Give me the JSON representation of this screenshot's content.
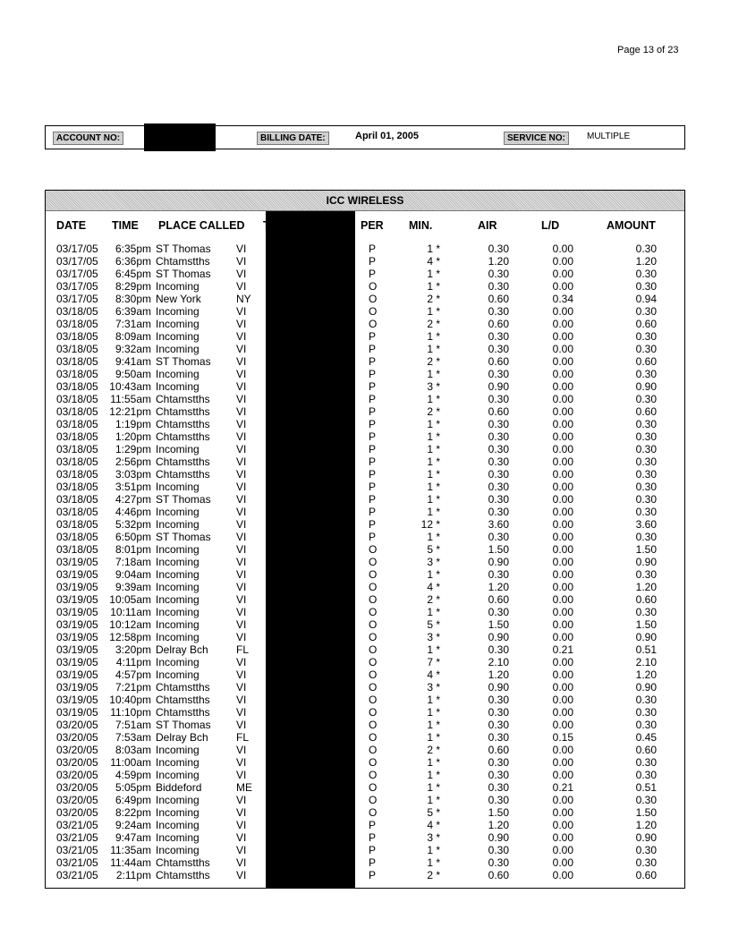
{
  "page_number": "Page 13  of  23",
  "account": {
    "account_label": "ACCOUNT NO:",
    "billing_label": "BILLING DATE:",
    "billing_date": "April  01, 2005",
    "service_label": "SERVICE NO:",
    "service_value": "MULTIPLE"
  },
  "table": {
    "title": "ICC WIRELESS",
    "headers": [
      "DATE",
      "TIME",
      "PLACE CALLED",
      "TELEPHONE #",
      "PER",
      "MIN.",
      "AIR",
      "L/D",
      "AMOUNT"
    ],
    "rows": [
      [
        "03/17/05",
        "6:35pm",
        "ST Thomas",
        "VI",
        "P",
        "1 *",
        "0.30",
        "0.00",
        "0.30"
      ],
      [
        "03/17/05",
        "6:36pm",
        "Chtamstths",
        "VI",
        "P",
        "4 *",
        "1.20",
        "0.00",
        "1.20"
      ],
      [
        "03/17/05",
        "6:45pm",
        "ST Thomas",
        "VI",
        "P",
        "1 *",
        "0.30",
        "0.00",
        "0.30"
      ],
      [
        "03/17/05",
        "8:29pm",
        "Incoming",
        "VI",
        "O",
        "1 *",
        "0.30",
        "0.00",
        "0.30"
      ],
      [
        "03/17/05",
        "8:30pm",
        "New York",
        "NY",
        "O",
        "2 *",
        "0.60",
        "0.34",
        "0.94"
      ],
      [
        "03/18/05",
        "6:39am",
        "Incoming",
        "VI",
        "O",
        "1 *",
        "0.30",
        "0.00",
        "0.30"
      ],
      [
        "03/18/05",
        "7:31am",
        "Incoming",
        "VI",
        "O",
        "2 *",
        "0.60",
        "0.00",
        "0.60"
      ],
      [
        "03/18/05",
        "8:09am",
        "Incoming",
        "VI",
        "P",
        "1 *",
        "0.30",
        "0.00",
        "0.30"
      ],
      [
        "03/18/05",
        "9:32am",
        "Incoming",
        "VI",
        "P",
        "1 *",
        "0.30",
        "0.00",
        "0.30"
      ],
      [
        "03/18/05",
        "9:41am",
        "ST Thomas",
        "VI",
        "P",
        "2 *",
        "0.60",
        "0.00",
        "0.60"
      ],
      [
        "03/18/05",
        "9:50am",
        "Incoming",
        "VI",
        "P",
        "1 *",
        "0.30",
        "0.00",
        "0.30"
      ],
      [
        "03/18/05",
        "10:43am",
        "Incoming",
        "VI",
        "P",
        "3 *",
        "0.90",
        "0.00",
        "0.90"
      ],
      [
        "03/18/05",
        "11:55am",
        "Chtamstths",
        "VI",
        "P",
        "1 *",
        "0.30",
        "0.00",
        "0.30"
      ],
      [
        "03/18/05",
        "12:21pm",
        "Chtamstths",
        "VI",
        "P",
        "2 *",
        "0.60",
        "0.00",
        "0.60"
      ],
      [
        "03/18/05",
        "1:19pm",
        "Chtamstths",
        "VI",
        "P",
        "1 *",
        "0.30",
        "0.00",
        "0.30"
      ],
      [
        "03/18/05",
        "1:20pm",
        "Chtamstths",
        "VI",
        "P",
        "1 *",
        "0.30",
        "0.00",
        "0.30"
      ],
      [
        "03/18/05",
        "1:29pm",
        "Incoming",
        "VI",
        "P",
        "1 *",
        "0.30",
        "0.00",
        "0.30"
      ],
      [
        "03/18/05",
        "2:56pm",
        "Chtamstths",
        "VI",
        "P",
        "1 *",
        "0.30",
        "0.00",
        "0.30"
      ],
      [
        "03/18/05",
        "3:03pm",
        "Chtamstths",
        "VI",
        "P",
        "1 *",
        "0.30",
        "0.00",
        "0.30"
      ],
      [
        "03/18/05",
        "3:51pm",
        "Incoming",
        "VI",
        "P",
        "1 *",
        "0.30",
        "0.00",
        "0.30"
      ],
      [
        "03/18/05",
        "4:27pm",
        "ST Thomas",
        "VI",
        "P",
        "1 *",
        "0.30",
        "0.00",
        "0.30"
      ],
      [
        "03/18/05",
        "4:46pm",
        "Incoming",
        "VI",
        "P",
        "1 *",
        "0.30",
        "0.00",
        "0.30"
      ],
      [
        "03/18/05",
        "5:32pm",
        "Incoming",
        "VI",
        "P",
        "12 *",
        "3.60",
        "0.00",
        "3.60"
      ],
      [
        "03/18/05",
        "6:50pm",
        "ST Thomas",
        "VI",
        "P",
        "1 *",
        "0.30",
        "0.00",
        "0.30"
      ],
      [
        "03/18/05",
        "8:01pm",
        "Incoming",
        "VI",
        "O",
        "5 *",
        "1.50",
        "0.00",
        "1.50"
      ],
      [
        "03/19/05",
        "7:18am",
        "Incoming",
        "VI",
        "O",
        "3 *",
        "0.90",
        "0.00",
        "0.90"
      ],
      [
        "03/19/05",
        "9:04am",
        "Incoming",
        "VI",
        "O",
        "1 *",
        "0.30",
        "0.00",
        "0.30"
      ],
      [
        "03/19/05",
        "9:39am",
        "Incoming",
        "VI",
        "O",
        "4 *",
        "1.20",
        "0.00",
        "1.20"
      ],
      [
        "03/19/05",
        "10:05am",
        "Incoming",
        "VI",
        "O",
        "2 *",
        "0.60",
        "0.00",
        "0.60"
      ],
      [
        "03/19/05",
        "10:11am",
        "Incoming",
        "VI",
        "O",
        "1 *",
        "0.30",
        "0.00",
        "0.30"
      ],
      [
        "03/19/05",
        "10:12am",
        "Incoming",
        "VI",
        "O",
        "5 *",
        "1.50",
        "0.00",
        "1.50"
      ],
      [
        "03/19/05",
        "12:58pm",
        "Incoming",
        "VI",
        "O",
        "3 *",
        "0.90",
        "0.00",
        "0.90"
      ],
      [
        "03/19/05",
        "3:20pm",
        "Delray Bch",
        "FL",
        "O",
        "1 *",
        "0.30",
        "0.21",
        "0.51"
      ],
      [
        "03/19/05",
        "4:11pm",
        "Incoming",
        "VI",
        "O",
        "7 *",
        "2.10",
        "0.00",
        "2.10"
      ],
      [
        "03/19/05",
        "4:57pm",
        "Incoming",
        "VI",
        "O",
        "4 *",
        "1.20",
        "0.00",
        "1.20"
      ],
      [
        "03/19/05",
        "7:21pm",
        "Chtamstths",
        "VI",
        "O",
        "3 *",
        "0.90",
        "0.00",
        "0.90"
      ],
      [
        "03/19/05",
        "10:40pm",
        "Chtamstths",
        "VI",
        "O",
        "1 *",
        "0.30",
        "0.00",
        "0.30"
      ],
      [
        "03/19/05",
        "11:10pm",
        "Chtamstths",
        "VI",
        "O",
        "1 *",
        "0.30",
        "0.00",
        "0.30"
      ],
      [
        "03/20/05",
        "7:51am",
        "ST Thomas",
        "VI",
        "O",
        "1 *",
        "0.30",
        "0.00",
        "0.30"
      ],
      [
        "03/20/05",
        "7:53am",
        "Delray Bch",
        "FL",
        "O",
        "1 *",
        "0.30",
        "0.15",
        "0.45"
      ],
      [
        "03/20/05",
        "8:03am",
        "Incoming",
        "VI",
        "O",
        "2 *",
        "0.60",
        "0.00",
        "0.60"
      ],
      [
        "03/20/05",
        "11:00am",
        "Incoming",
        "VI",
        "O",
        "1 *",
        "0.30",
        "0.00",
        "0.30"
      ],
      [
        "03/20/05",
        "4:59pm",
        "Incoming",
        "VI",
        "O",
        "1 *",
        "0.30",
        "0.00",
        "0.30"
      ],
      [
        "03/20/05",
        "5:05pm",
        "Biddeford",
        "ME",
        "O",
        "1 *",
        "0.30",
        "0.21",
        "0.51"
      ],
      [
        "03/20/05",
        "6:49pm",
        "Incoming",
        "VI",
        "O",
        "1 *",
        "0.30",
        "0.00",
        "0.30"
      ],
      [
        "03/20/05",
        "8:22pm",
        "Incoming",
        "VI",
        "O",
        "5 *",
        "1.50",
        "0.00",
        "1.50"
      ],
      [
        "03/21/05",
        "9:24am",
        "Incoming",
        "VI",
        "P",
        "4 *",
        "1.20",
        "0.00",
        "1.20"
      ],
      [
        "03/21/05",
        "9:47am",
        "Incoming",
        "VI",
        "P",
        "3 *",
        "0.90",
        "0.00",
        "0.90"
      ],
      [
        "03/21/05",
        "11:35am",
        "Incoming",
        "VI",
        "P",
        "1 *",
        "0.30",
        "0.00",
        "0.30"
      ],
      [
        "03/21/05",
        "11:44am",
        "Chtamstths",
        "VI",
        "P",
        "1 *",
        "0.30",
        "0.00",
        "0.30"
      ],
      [
        "03/21/05",
        "2:11pm",
        "Chtamstths",
        "VI",
        "P",
        "2 *",
        "0.60",
        "0.00",
        "0.60"
      ]
    ]
  }
}
